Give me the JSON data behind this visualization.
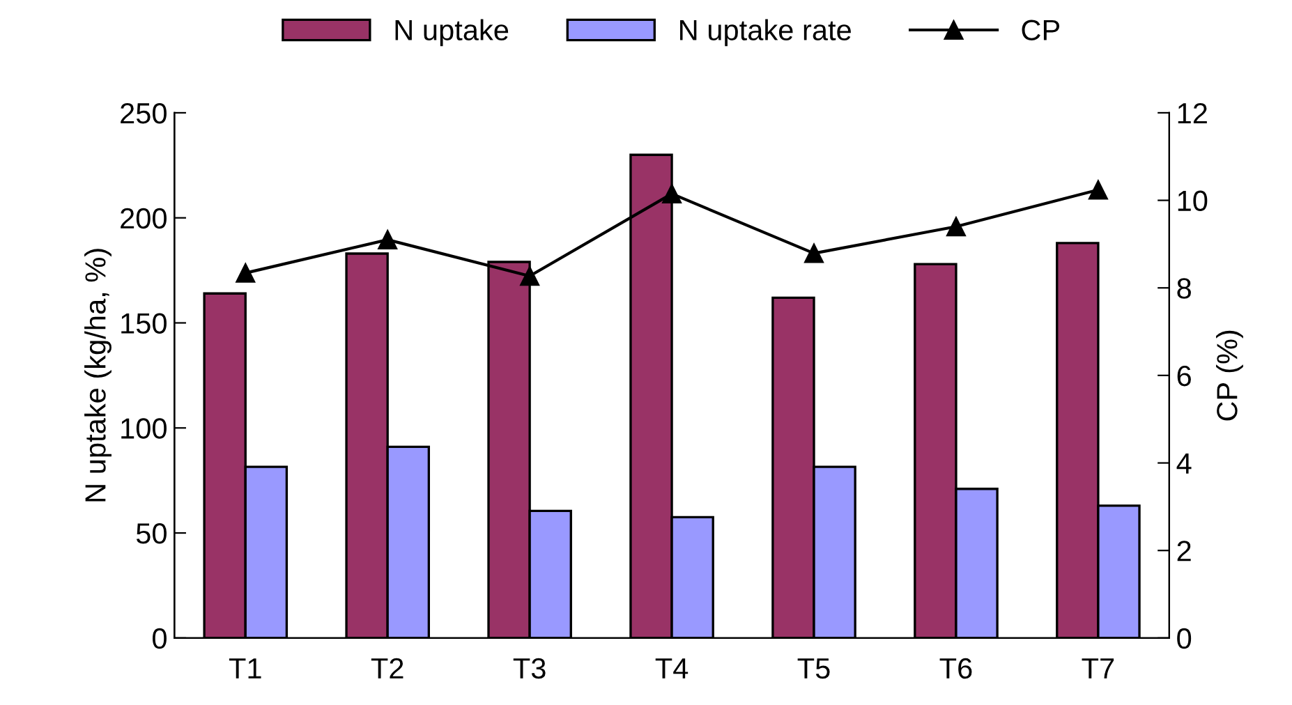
{
  "chart_data": {
    "type": "bar",
    "categories": [
      "T1",
      "T2",
      "T3",
      "T4",
      "T5",
      "T6",
      "T7"
    ],
    "series": [
      {
        "name": "N uptake",
        "color": "#993366",
        "values": [
          164,
          183,
          179,
          230,
          162,
          178,
          188
        ]
      },
      {
        "name": "N uptake rate",
        "color": "#9999ff",
        "values": [
          81.5,
          91,
          60.5,
          57.5,
          81.5,
          71,
          63
        ]
      },
      {
        "name": "CP",
        "type": "line",
        "axis": "y2",
        "color": "#000000",
        "marker": "triangle",
        "values": [
          8.34,
          9.1,
          8.27,
          10.15,
          8.79,
          9.4,
          10.24
        ]
      }
    ],
    "ylabel": "N uptake (kg/ha, %)",
    "y2label": "CP (%)",
    "ylim": [
      0,
      250
    ],
    "yticks": [
      0,
      50,
      100,
      150,
      200,
      250
    ],
    "y2lim": [
      0,
      12
    ],
    "y2ticks": [
      0,
      2,
      4,
      6,
      8,
      10,
      12
    ],
    "grid": false,
    "legend": "top"
  }
}
